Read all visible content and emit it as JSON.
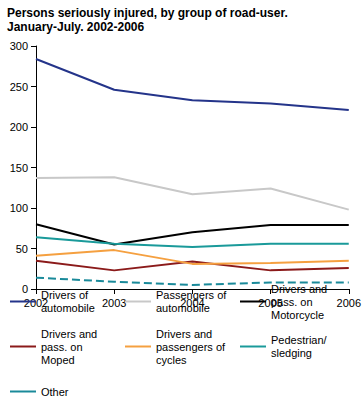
{
  "chart_data": {
    "type": "line",
    "title": "Persons seriously injured, by group of road-user.",
    "subtitle": "January-July. 2002-2006",
    "categories": [
      "2002",
      "2003",
      "2004",
      "2005",
      "2006"
    ],
    "ylim": [
      0,
      300
    ],
    "yticks": [
      0,
      50,
      100,
      150,
      200,
      250,
      300
    ],
    "grid": false,
    "legend": "bottom",
    "series": [
      {
        "name": "Drivers of automobile",
        "color": "#24348a",
        "values": [
          284,
          246,
          233,
          229,
          221
        ]
      },
      {
        "name": "Passengers of automobile",
        "color": "#c8c8c8",
        "values": [
          137,
          138,
          117,
          124,
          98
        ]
      },
      {
        "name": "Drivers and pass. on Motorcycle",
        "color": "#000000",
        "values": [
          80,
          55,
          70,
          79,
          79
        ]
      },
      {
        "name": "Drivers and pass. on Moped",
        "color": "#8b1a1a",
        "values": [
          35,
          23,
          34,
          23,
          26
        ]
      },
      {
        "name": "Drivers and passengers of cycles",
        "color": "#f5a040",
        "values": [
          41,
          48,
          31,
          32,
          35
        ]
      },
      {
        "name": "Pedestrian/ sledging",
        "color": "#1a9a9a",
        "values": [
          64,
          56,
          52,
          56,
          56
        ]
      },
      {
        "name": "Other",
        "color": "#1a8a9a",
        "values": [
          14,
          9,
          5,
          8,
          8
        ],
        "line_style": "dashed"
      }
    ]
  }
}
